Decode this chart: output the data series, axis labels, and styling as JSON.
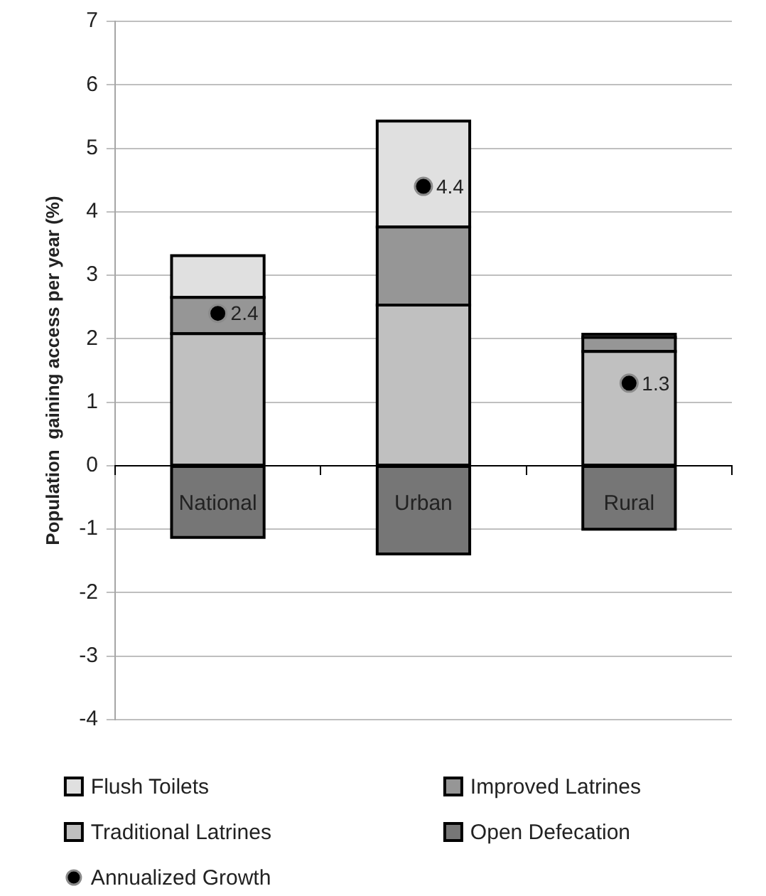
{
  "chart_data": {
    "type": "bar",
    "stacked": true,
    "categories": [
      "National",
      "Urban",
      "Rural"
    ],
    "ylabel": "Population  gaining access per year (%)",
    "ylim": [
      -4,
      7
    ],
    "yticks": [
      -4,
      -3,
      -2,
      -1,
      0,
      1,
      2,
      3,
      4,
      5,
      6,
      7
    ],
    "grid": "y",
    "legend": "bottom",
    "marker": "circle",
    "series": [
      {
        "name": "Traditional Latrines",
        "color": "#c0c0c0",
        "values": [
          2.08,
          2.53,
          1.8
        ]
      },
      {
        "name": "Improved Latrines",
        "color": "#969696",
        "values": [
          0.57,
          1.23,
          0.22
        ]
      },
      {
        "name": "Flush Toilets",
        "color": "#e0e0e0",
        "values": [
          0.66,
          1.67,
          0.05
        ]
      },
      {
        "name": "Open Defecation",
        "color": "#767676",
        "values": [
          -1.13,
          -1.39,
          -1.0
        ]
      },
      {
        "name": "Annualized Growth",
        "type": "scatter",
        "color": "#000000",
        "x": [
          "National",
          "Urban",
          "Rural"
        ],
        "values": [
          2.4,
          4.4,
          1.3
        ],
        "value_labels": [
          "2.4",
          "4.4",
          "1.3"
        ]
      }
    ]
  }
}
